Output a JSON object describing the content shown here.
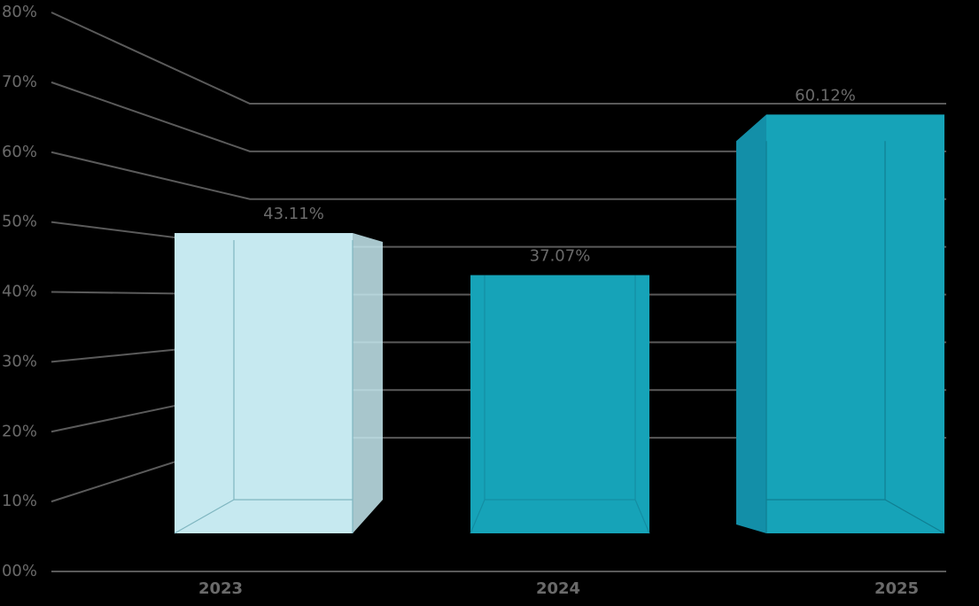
{
  "chart_data": {
    "type": "bar3d",
    "categories": [
      "2023",
      "2024",
      "2025"
    ],
    "values": [
      43.11,
      37.07,
      60.12
    ],
    "value_labels": [
      "43.11%",
      "37.07%",
      "60.12%"
    ],
    "colors": [
      "#c6e9f0",
      "#16a3b8",
      "#16a3b8"
    ],
    "ylim": [
      0,
      80
    ],
    "yticks": [
      {
        "value": 0,
        "label": "00%"
      },
      {
        "value": 10,
        "label": "10%"
      },
      {
        "value": 20,
        "label": "20%"
      },
      {
        "value": 30,
        "label": "30%"
      },
      {
        "value": 40,
        "label": "40%"
      },
      {
        "value": 50,
        "label": "50%"
      },
      {
        "value": 60,
        "label": "60%"
      },
      {
        "value": 70,
        "label": "70%"
      },
      {
        "value": 80,
        "label": "80%"
      }
    ],
    "grid": true
  }
}
